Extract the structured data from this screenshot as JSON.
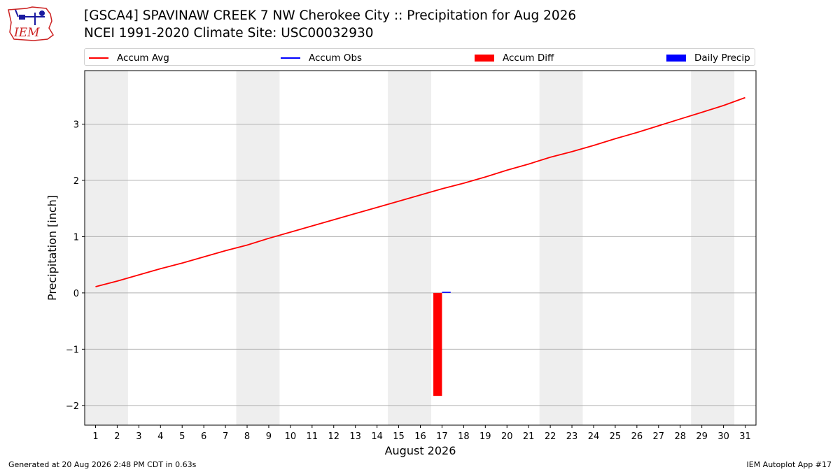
{
  "header": {
    "title_line1": "[GSCA4] SPAVINAW CREEK 7 NW Cherokee City :: Precipitation for Aug 2026",
    "title_line2": "NCEI 1991-2020 Climate Site: USC00032930",
    "logo_text": "IEM"
  },
  "footer": {
    "generated": "Generated at 20 Aug 2026 2:48 PM CDT in 0.63s",
    "app": "IEM Autoplot App #17"
  },
  "colors": {
    "accum_avg": "#ff0000",
    "accum_obs": "#0000ff",
    "accum_diff": "#ff0000",
    "daily_precip": "#0000ff",
    "weekend_band": "#eeeeee",
    "grid": "#b0b0b0"
  },
  "chart_data": {
    "type": "line",
    "xlabel": "August 2026",
    "ylabel": "Precipitation [inch]",
    "xlim": [
      0.5,
      31.5
    ],
    "ylim": [
      -2.35,
      3.95
    ],
    "grid": "horizontal",
    "x_ticks": [
      1,
      2,
      3,
      4,
      5,
      6,
      7,
      8,
      9,
      10,
      11,
      12,
      13,
      14,
      15,
      16,
      17,
      18,
      19,
      20,
      21,
      22,
      23,
      24,
      25,
      26,
      27,
      28,
      29,
      30,
      31
    ],
    "y_ticks": [
      -2,
      -1,
      0,
      1,
      2,
      3
    ],
    "y_tick_labels": [
      "−2",
      "−1",
      "0",
      "1",
      "2",
      "3"
    ],
    "weekend_bands": [
      [
        0.5,
        2.5
      ],
      [
        7.5,
        9.5
      ],
      [
        14.5,
        16.5
      ],
      [
        21.5,
        23.5
      ],
      [
        28.5,
        30.5
      ]
    ],
    "legend": {
      "placement": "top",
      "entries": [
        {
          "label": "Accum Avg",
          "kind": "line",
          "color": "#ff0000"
        },
        {
          "label": "Accum Obs",
          "kind": "line",
          "color": "#0000ff"
        },
        {
          "label": "Accum Diff",
          "kind": "bar",
          "color": "#ff0000"
        },
        {
          "label": "Daily Precip",
          "kind": "bar",
          "color": "#0000ff"
        }
      ]
    },
    "series": [
      {
        "name": "Accum Avg",
        "type": "line",
        "x": [
          1,
          2,
          3,
          4,
          5,
          6,
          7,
          8,
          9,
          10,
          11,
          12,
          13,
          14,
          15,
          16,
          17,
          18,
          19,
          20,
          21,
          22,
          23,
          24,
          25,
          26,
          27,
          28,
          29,
          30,
          31
        ],
        "values": [
          0.11,
          0.21,
          0.32,
          0.43,
          0.53,
          0.64,
          0.75,
          0.85,
          0.97,
          1.08,
          1.19,
          1.3,
          1.41,
          1.52,
          1.63,
          1.74,
          1.85,
          1.95,
          2.06,
          2.18,
          2.29,
          2.41,
          2.51,
          2.62,
          2.74,
          2.85,
          2.97,
          3.09,
          3.21,
          3.33,
          3.47
        ]
      },
      {
        "name": "Accum Diff",
        "type": "bar",
        "x": [
          17
        ],
        "values": [
          -1.83
        ]
      },
      {
        "name": "Daily Precip",
        "type": "bar",
        "x": [
          17
        ],
        "values": [
          0.02
        ]
      }
    ]
  }
}
